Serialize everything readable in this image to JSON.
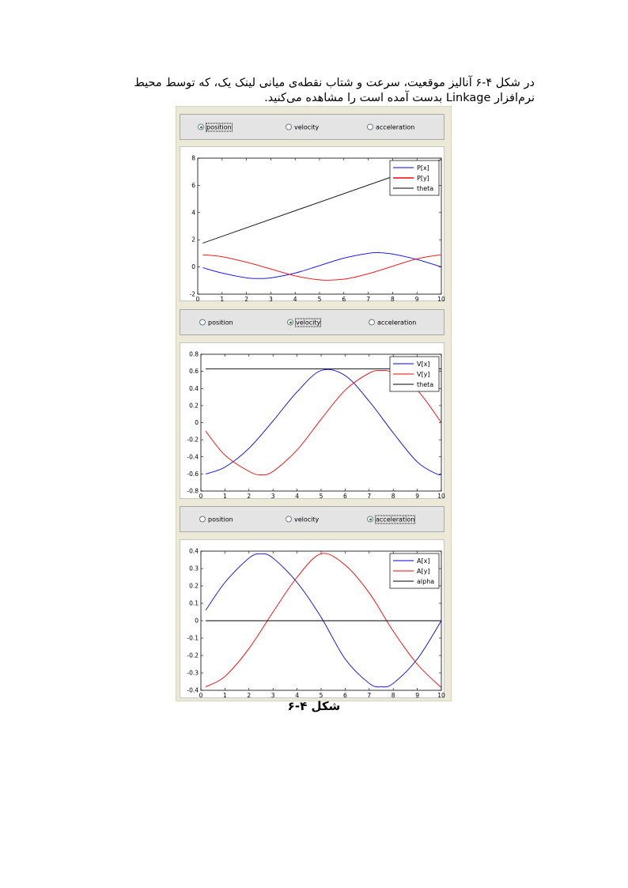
{
  "paragraph": "در شکل ۴-۶ آنالیز موقعیت، سرعت و شتاب نقطه‌ی میانی لینک یک، که توسط محیط نرم‌افزار Linkage بدست آمده است را مشاهده می‌کنید.",
  "caption": "شکل ۴-۶",
  "colors": {
    "x_series": "#0000ff",
    "y_series": "#ff0000",
    "angle_series": "#000000"
  },
  "panels": [
    {
      "options": [
        "position",
        "velocity",
        "acceleration"
      ],
      "selected": 0
    },
    {
      "options": [
        "position",
        "velocity",
        "acceleration"
      ],
      "selected": 1
    },
    {
      "options": [
        "position",
        "velocity",
        "acceleration"
      ],
      "selected": 2
    }
  ],
  "chart_data": [
    {
      "type": "line",
      "xlim": [
        0,
        10
      ],
      "ylim": [
        -2,
        8
      ],
      "xticks": [
        "0",
        "1",
        "2",
        "3",
        "4",
        "5",
        "6",
        "7",
        "8",
        "9",
        "10"
      ],
      "yticks": [
        "8",
        "6",
        "4",
        "2",
        "0",
        "-2"
      ],
      "legend": [
        "P[x]",
        "P[y]",
        "theta"
      ],
      "legend_position": "top-right",
      "series": [
        {
          "name": "P[x]",
          "color": "#0000ff",
          "x": [
            0.2,
            1,
            2,
            2.5,
            3,
            4,
            5,
            6,
            7,
            7.4,
            8,
            9,
            10
          ],
          "y": [
            -0.05,
            -0.45,
            -0.8,
            -0.85,
            -0.8,
            -0.45,
            0.1,
            0.65,
            1.0,
            1.05,
            0.95,
            0.55,
            0.0
          ]
        },
        {
          "name": "P[y]",
          "color": "#ff0000",
          "x": [
            0.2,
            1,
            2,
            3,
            4,
            5,
            6,
            7,
            8,
            9,
            10
          ],
          "y": [
            0.9,
            0.75,
            0.35,
            -0.15,
            -0.65,
            -0.95,
            -0.9,
            -0.5,
            0.05,
            0.6,
            0.9
          ]
        },
        {
          "name": "theta",
          "color": "#000000",
          "x": [
            0.2,
            10
          ],
          "y": [
            1.75,
            7.9
          ]
        }
      ]
    },
    {
      "type": "line",
      "xlim": [
        0,
        10
      ],
      "ylim": [
        -0.8,
        0.8
      ],
      "xticks": [
        "0",
        "1",
        "2",
        "3",
        "4",
        "5",
        "6",
        "7",
        "8",
        "9",
        "10"
      ],
      "yticks": [
        "0.8",
        "0.6",
        "0.4",
        "0.2",
        "0",
        "-0.2",
        "-0.4",
        "-0.6",
        "-0.8"
      ],
      "legend": [
        "V[x]",
        "V[y]",
        "theta"
      ],
      "legend_position": "top-right",
      "series": [
        {
          "name": "V[x]",
          "color": "#0000ff",
          "x": [
            0.2,
            1,
            2,
            3,
            4,
            5,
            6,
            7,
            8,
            9,
            9.8,
            10
          ],
          "y": [
            -0.6,
            -0.52,
            -0.3,
            0.02,
            0.36,
            0.61,
            0.55,
            0.25,
            -0.12,
            -0.46,
            -0.6,
            -0.6
          ]
        },
        {
          "name": "V[y]",
          "color": "#ff0000",
          "x": [
            0.2,
            1,
            2,
            2.5,
            3,
            4,
            5,
            6,
            7,
            7.5,
            8,
            9,
            10
          ],
          "y": [
            -0.1,
            -0.38,
            -0.57,
            -0.61,
            -0.57,
            -0.32,
            0.04,
            0.38,
            0.58,
            0.61,
            0.58,
            0.38,
            0.0
          ]
        },
        {
          "name": "theta",
          "color": "#000000",
          "x": [
            0.2,
            10
          ],
          "y": [
            0.63,
            0.63
          ]
        }
      ]
    },
    {
      "type": "line",
      "xlim": [
        0,
        10
      ],
      "ylim": [
        -0.4,
        0.4
      ],
      "xticks": [
        "0",
        "1",
        "2",
        "3",
        "4",
        "5",
        "6",
        "7",
        "8",
        "9",
        "10"
      ],
      "yticks": [
        "0.4",
        "0.3",
        "0.2",
        "0.1",
        "0",
        "-0.1",
        "-0.2",
        "-0.3",
        "-0.4"
      ],
      "legend": [
        "A[x]",
        "A[y]",
        "alpha"
      ],
      "legend_position": "top-right",
      "series": [
        {
          "name": "A[x]",
          "color": "#0000ff",
          "x": [
            0.2,
            1,
            2,
            2.5,
            3,
            4,
            5,
            6,
            7,
            7.5,
            8,
            9,
            10
          ],
          "y": [
            0.06,
            0.22,
            0.36,
            0.385,
            0.36,
            0.22,
            0.02,
            -0.22,
            -0.36,
            -0.38,
            -0.36,
            -0.22,
            0.0
          ]
        },
        {
          "name": "A[y]",
          "color": "#ff0000",
          "x": [
            0.2,
            1,
            2,
            3,
            4,
            5,
            6,
            7,
            8,
            9,
            10
          ],
          "y": [
            -0.38,
            -0.32,
            -0.16,
            0.05,
            0.25,
            0.385,
            0.32,
            0.16,
            -0.06,
            -0.25,
            -0.385
          ]
        },
        {
          "name": "alpha",
          "color": "#000000",
          "x": [
            0.2,
            10
          ],
          "y": [
            0,
            0
          ]
        }
      ]
    }
  ]
}
